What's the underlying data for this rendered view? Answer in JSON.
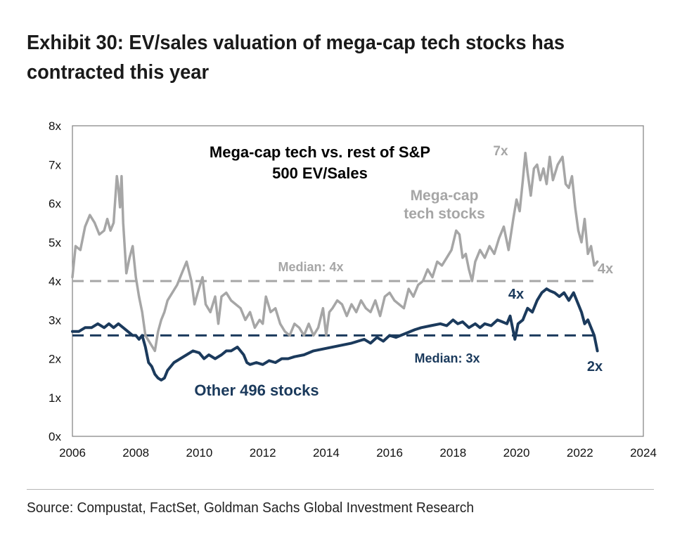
{
  "title": "Exhibit 30: EV/sales valuation of mega-cap tech stocks has contracted this year",
  "source": "Source: Compustat, FactSet, Goldman Sachs Global Investment Research",
  "colors": {
    "mega_cap": "#a6a6a6",
    "other": "#1b3a5c",
    "frame": "#7f7f7f"
  },
  "chart_data": {
    "type": "line",
    "title": "Mega-cap tech vs. rest of S&P 500 EV/Sales",
    "title_lines": [
      "Mega-cap tech vs. rest of S&P",
      "500 EV/Sales"
    ],
    "xlim": [
      2006,
      2024
    ],
    "ylim": [
      0,
      8
    ],
    "x_ticks": [
      2006,
      2008,
      2010,
      2012,
      2014,
      2016,
      2018,
      2020,
      2022,
      2024
    ],
    "x_tick_labels": [
      "2006",
      "2008",
      "2010",
      "2012",
      "2014",
      "2016",
      "2018",
      "2020",
      "2022",
      "2024"
    ],
    "y_ticks": [
      0,
      1,
      2,
      3,
      4,
      5,
      6,
      7,
      8
    ],
    "y_tick_labels": [
      "0x",
      "1x",
      "2x",
      "3x",
      "4x",
      "5x",
      "6x",
      "7x",
      "8x"
    ],
    "grid": false,
    "series": [
      {
        "name": "Mega-cap tech stocks",
        "name_lines": [
          "Mega-cap",
          "tech stocks"
        ],
        "color": "#a6a6a6",
        "x": [
          2006.0,
          2006.1,
          2006.25,
          2006.4,
          2006.55,
          2006.7,
          2006.85,
          2007.0,
          2007.1,
          2007.2,
          2007.3,
          2007.4,
          2007.45,
          2007.5,
          2007.55,
          2007.6,
          2007.7,
          2007.8,
          2007.9,
          2008.0,
          2008.1,
          2008.2,
          2008.3,
          2008.45,
          2008.6,
          2008.7,
          2008.8,
          2008.9,
          2009.0,
          2009.15,
          2009.3,
          2009.45,
          2009.6,
          2009.75,
          2009.85,
          2009.95,
          2010.1,
          2010.2,
          2010.35,
          2010.5,
          2010.6,
          2010.7,
          2010.85,
          2011.0,
          2011.15,
          2011.3,
          2011.45,
          2011.6,
          2011.75,
          2011.9,
          2012.0,
          2012.1,
          2012.25,
          2012.4,
          2012.55,
          2012.7,
          2012.85,
          2013.0,
          2013.15,
          2013.3,
          2013.45,
          2013.6,
          2013.75,
          2013.9,
          2014.0,
          2014.1,
          2014.2,
          2014.35,
          2014.5,
          2014.65,
          2014.8,
          2014.95,
          2015.1,
          2015.25,
          2015.4,
          2015.55,
          2015.7,
          2015.85,
          2016.0,
          2016.15,
          2016.3,
          2016.45,
          2016.6,
          2016.75,
          2016.9,
          2017.05,
          2017.2,
          2017.35,
          2017.5,
          2017.65,
          2017.8,
          2017.95,
          2018.1,
          2018.2,
          2018.3,
          2018.4,
          2018.5,
          2018.6,
          2018.7,
          2018.85,
          2019.0,
          2019.15,
          2019.3,
          2019.45,
          2019.6,
          2019.75,
          2019.9,
          2020.0,
          2020.1,
          2020.2,
          2020.28,
          2020.35,
          2020.45,
          2020.55,
          2020.65,
          2020.75,
          2020.85,
          2020.95,
          2021.05,
          2021.15,
          2021.3,
          2021.45,
          2021.55,
          2021.65,
          2021.75,
          2021.85,
          2021.95,
          2022.05,
          2022.15,
          2022.25,
          2022.35,
          2022.45,
          2022.55
        ],
        "values": [
          4.1,
          4.9,
          4.8,
          5.4,
          5.7,
          5.5,
          5.2,
          5.3,
          5.6,
          5.3,
          5.5,
          6.7,
          6.4,
          5.9,
          6.7,
          5.5,
          4.2,
          4.6,
          4.9,
          4.1,
          3.6,
          3.2,
          2.6,
          2.4,
          2.2,
          2.7,
          3.0,
          3.2,
          3.5,
          3.7,
          3.9,
          4.2,
          4.5,
          4.0,
          3.4,
          3.7,
          4.1,
          3.4,
          3.2,
          3.6,
          2.9,
          3.6,
          3.7,
          3.5,
          3.4,
          3.3,
          3.0,
          3.2,
          2.8,
          3.0,
          2.9,
          3.6,
          3.2,
          3.3,
          2.9,
          2.7,
          2.6,
          2.9,
          2.8,
          2.6,
          2.9,
          2.6,
          2.8,
          3.3,
          2.6,
          3.2,
          3.3,
          3.5,
          3.4,
          3.1,
          3.4,
          3.2,
          3.5,
          3.3,
          3.2,
          3.5,
          3.1,
          3.6,
          3.7,
          3.5,
          3.4,
          3.3,
          3.8,
          3.6,
          3.9,
          4.0,
          4.3,
          4.1,
          4.5,
          4.4,
          4.6,
          4.8,
          5.3,
          5.2,
          4.6,
          4.7,
          4.3,
          4.0,
          4.5,
          4.8,
          4.6,
          4.9,
          4.7,
          5.1,
          5.4,
          4.8,
          5.6,
          6.1,
          5.8,
          6.6,
          7.3,
          6.8,
          6.2,
          6.9,
          7.0,
          6.6,
          6.9,
          6.5,
          7.2,
          6.6,
          7.0,
          7.2,
          6.5,
          6.4,
          6.7,
          5.9,
          5.3,
          5.0,
          5.6,
          4.7,
          4.9,
          4.4,
          4.5
        ],
        "end_label": "4x",
        "peak_label": "7x"
      },
      {
        "name": "Other 496 stocks",
        "color": "#1b3a5c",
        "x": [
          2006.0,
          2006.2,
          2006.4,
          2006.6,
          2006.8,
          2007.0,
          2007.15,
          2007.3,
          2007.45,
          2007.6,
          2007.75,
          2007.9,
          2008.0,
          2008.1,
          2008.2,
          2008.3,
          2008.4,
          2008.5,
          2008.6,
          2008.7,
          2008.8,
          2008.9,
          2009.0,
          2009.2,
          2009.4,
          2009.6,
          2009.8,
          2010.0,
          2010.15,
          2010.3,
          2010.5,
          2010.7,
          2010.85,
          2011.0,
          2011.2,
          2011.4,
          2011.5,
          2011.6,
          2011.8,
          2012.0,
          2012.2,
          2012.4,
          2012.6,
          2012.8,
          2013.0,
          2013.3,
          2013.6,
          2013.9,
          2014.2,
          2014.5,
          2014.8,
          2015.0,
          2015.2,
          2015.4,
          2015.6,
          2015.8,
          2016.0,
          2016.2,
          2016.5,
          2016.8,
          2017.0,
          2017.3,
          2017.6,
          2017.8,
          2018.0,
          2018.15,
          2018.3,
          2018.5,
          2018.7,
          2018.85,
          2019.0,
          2019.2,
          2019.4,
          2019.55,
          2019.7,
          2019.8,
          2019.95,
          2020.05,
          2020.2,
          2020.35,
          2020.5,
          2020.65,
          2020.8,
          2020.95,
          2021.05,
          2021.2,
          2021.35,
          2021.5,
          2021.65,
          2021.8,
          2021.95,
          2022.05,
          2022.15,
          2022.25,
          2022.35,
          2022.45,
          2022.55
        ],
        "values": [
          2.7,
          2.7,
          2.8,
          2.8,
          2.9,
          2.8,
          2.9,
          2.8,
          2.9,
          2.8,
          2.7,
          2.6,
          2.6,
          2.5,
          2.6,
          2.3,
          1.9,
          1.8,
          1.6,
          1.5,
          1.45,
          1.5,
          1.7,
          1.9,
          2.0,
          2.1,
          2.2,
          2.15,
          2.0,
          2.1,
          2.0,
          2.1,
          2.2,
          2.2,
          2.3,
          2.1,
          1.9,
          1.85,
          1.9,
          1.85,
          1.95,
          1.9,
          2.0,
          2.0,
          2.05,
          2.1,
          2.2,
          2.25,
          2.3,
          2.35,
          2.4,
          2.45,
          2.5,
          2.4,
          2.55,
          2.45,
          2.6,
          2.55,
          2.65,
          2.75,
          2.8,
          2.85,
          2.9,
          2.85,
          3.0,
          2.9,
          2.95,
          2.8,
          2.9,
          2.8,
          2.9,
          2.85,
          3.0,
          2.95,
          2.9,
          3.1,
          2.5,
          2.9,
          3.0,
          3.3,
          3.2,
          3.5,
          3.7,
          3.8,
          3.75,
          3.7,
          3.6,
          3.7,
          3.5,
          3.7,
          3.4,
          3.2,
          2.9,
          3.0,
          2.8,
          2.6,
          2.2
        ],
        "end_label": "2x",
        "peak_label": "4x"
      }
    ],
    "reference_lines": [
      {
        "label": "Median: 4x",
        "value": 4.0,
        "color": "#a6a6a6",
        "style": "dashed"
      },
      {
        "label": "Median: 3x",
        "value": 2.6,
        "color": "#1b3a5c",
        "style": "dashed"
      }
    ]
  }
}
